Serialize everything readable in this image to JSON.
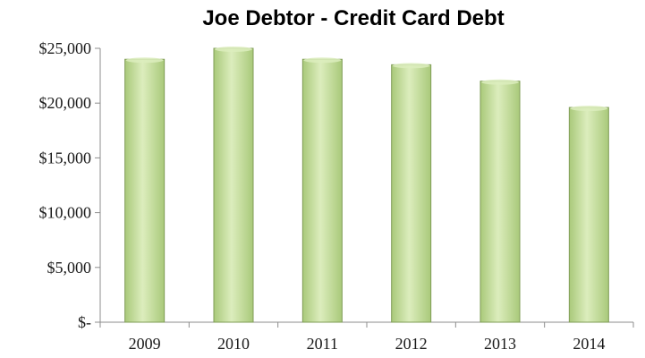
{
  "chart_data": {
    "type": "bar",
    "title": "Joe Debtor - Credit Card Debt",
    "xlabel": "",
    "ylabel": "",
    "categories": [
      "2009",
      "2010",
      "2011",
      "2012",
      "2013",
      "2014"
    ],
    "values": [
      24000,
      25000,
      24000,
      23500,
      22000,
      19600
    ],
    "ylim": [
      0,
      25000
    ],
    "yticks": [
      0,
      5000,
      10000,
      15000,
      20000,
      25000
    ],
    "ytick_labels": [
      "$-",
      "$5,000",
      "$10,000",
      "$15,000",
      "$20,000",
      "$25,000"
    ],
    "grid": false,
    "legend": "none",
    "bar_color": "#a9c97a",
    "bar_highlight": "#dcedbd",
    "bar_edge": "#7f9c56",
    "axis_color": "#8c8c8c"
  }
}
